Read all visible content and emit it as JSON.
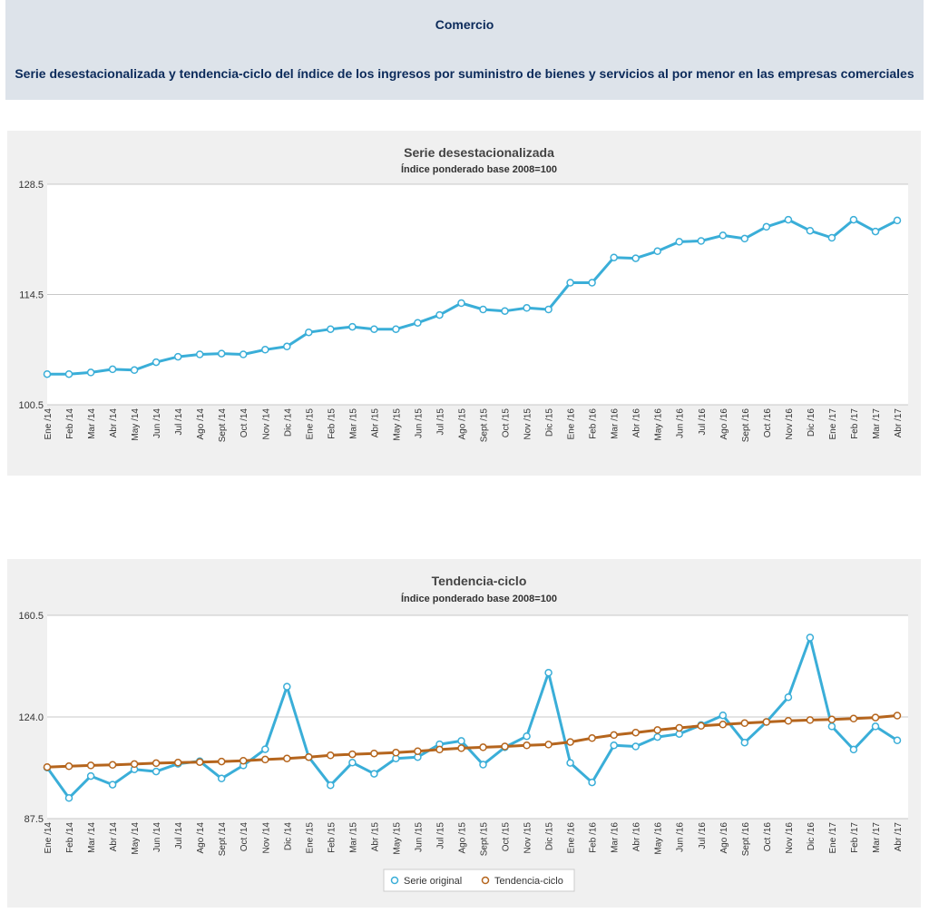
{
  "header": {
    "title": "Comercio",
    "subtitle": "Serie desestacionalizada y tendencia-ciclo del índice de los ingresos por suministro de bienes y servicios al por menor en las empresas comerciales"
  },
  "colors": {
    "header_bg": "#dde3ea",
    "panel_bg": "#f0f0f0",
    "series_blue": "#3aaed8",
    "series_orange": "#b5651d"
  },
  "chart_data": [
    {
      "type": "line",
      "title": "Serie desestacionalizada",
      "subtitle": "Índice ponderado base 2008=100",
      "categories": [
        "Ene /14",
        "Feb /14",
        "Mar /14",
        "Abr /14",
        "May /14",
        "Jun /14",
        "Jul /14",
        "Ago /14",
        "Sept /14",
        "Oct /14",
        "Nov /14",
        "Dic /14",
        "Ene /15",
        "Feb /15",
        "Mar /15",
        "Abr /15",
        "May /15",
        "Jun /15",
        "Jul /15",
        "Ago /15",
        "Sept /15",
        "Oct /15",
        "Nov /15",
        "Dic /15",
        "Ene /16",
        "Feb /16",
        "Mar /16",
        "Abr /16",
        "May /16",
        "Jun /16",
        "Jul /16",
        "Ago /16",
        "Sept /16",
        "Oct /16",
        "Nov /16",
        "Dic /16",
        "Ene /17",
        "Feb /17",
        "Mar /17",
        "Abr /17"
      ],
      "y_ticks": [
        "128.5",
        "114.5",
        "100.5"
      ],
      "ylim": [
        100.5,
        128.5
      ],
      "grid": true,
      "series": [
        {
          "name": "",
          "color": "#3aaed8",
          "values": [
            104.4,
            104.4,
            104.6,
            105.0,
            104.9,
            105.9,
            106.6,
            106.9,
            107.0,
            106.9,
            107.5,
            107.9,
            109.7,
            110.1,
            110.4,
            110.1,
            110.1,
            110.9,
            111.9,
            113.4,
            112.6,
            112.4,
            112.8,
            112.6,
            116.0,
            116.0,
            119.2,
            119.1,
            120.0,
            121.2,
            121.3,
            122.0,
            121.6,
            123.1,
            124.0,
            122.6,
            121.7,
            124.0,
            122.5,
            123.9
          ]
        }
      ]
    },
    {
      "type": "line",
      "title": "Tendencia-ciclo",
      "subtitle": "Índice ponderado base 2008=100",
      "categories": [
        "Ene /14",
        "Feb /14",
        "Mar /14",
        "Abr /14",
        "May /14",
        "Jun /14",
        "Jul /14",
        "Ago /14",
        "Sept /14",
        "Oct /14",
        "Nov /14",
        "Dic /14",
        "Ene /15",
        "Feb /15",
        "Mar /15",
        "Abr /15",
        "May /15",
        "Jun /15",
        "Jul /15",
        "Ago /15",
        "Sept /15",
        "Oct /15",
        "Nov /15",
        "Dic /15",
        "Ene /16",
        "Feb /16",
        "Mar /16",
        "Abr /16",
        "May /16",
        "Jun /16",
        "Jul /16",
        "Ago /16",
        "Sept /16",
        "Oct /16",
        "Nov /16",
        "Dic /16",
        "Ene /17",
        "Feb /17",
        "Mar /17",
        "Abr /17"
      ],
      "y_ticks": [
        "160.5",
        "124.0",
        "87.5"
      ],
      "ylim": [
        87.5,
        160.5
      ],
      "grid": true,
      "legend_position": "bottom-center",
      "series": [
        {
          "name": "Serie original",
          "color": "#3aaed8",
          "values": [
            105.8,
            94.9,
            102.8,
            99.7,
            105.2,
            104.4,
            107.2,
            108.1,
            101.9,
            106.6,
            112.4,
            134.9,
            109.6,
            99.5,
            107.6,
            103.6,
            109.1,
            109.6,
            114.2,
            115.4,
            106.9,
            113.1,
            117.1,
            139.9,
            107.5,
            100.5,
            113.8,
            113.4,
            116.8,
            117.9,
            121.1,
            124.6,
            114.8,
            122.2,
            131.1,
            152.5,
            120.6,
            112.3,
            120.6,
            115.6
          ]
        },
        {
          "name": "Tendencia-ciclo",
          "color": "#b5651d",
          "values": [
            106.0,
            106.3,
            106.6,
            106.8,
            107.1,
            107.4,
            107.6,
            107.8,
            108.0,
            108.3,
            108.7,
            109.1,
            109.6,
            110.2,
            110.6,
            110.9,
            111.2,
            111.7,
            112.3,
            112.8,
            113.1,
            113.4,
            113.8,
            114.1,
            115.0,
            116.4,
            117.5,
            118.4,
            119.3,
            120.1,
            120.8,
            121.3,
            121.8,
            122.2,
            122.6,
            122.9,
            123.1,
            123.4,
            123.8,
            124.5
          ]
        }
      ]
    }
  ]
}
